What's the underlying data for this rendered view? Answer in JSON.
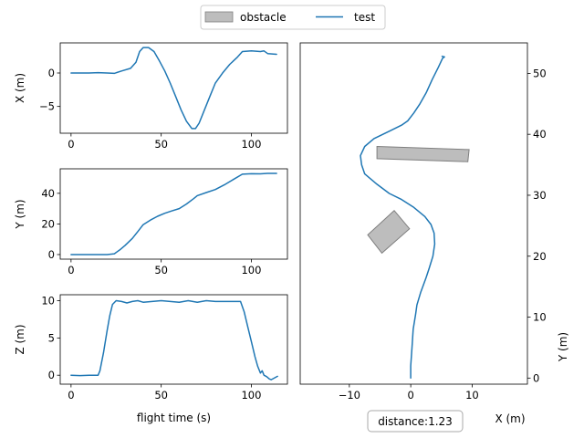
{
  "legend": {
    "items": [
      {
        "label": "obstacle",
        "kind": "patch",
        "color": "#999999"
      },
      {
        "label": "test",
        "kind": "line",
        "color": "#1f77b4"
      }
    ]
  },
  "colors": {
    "line": "#1f77b4",
    "obstacle_fill": "#999999",
    "axes": "#000000"
  },
  "annotation": {
    "text": "distance:1.23"
  },
  "chart_data": [
    {
      "id": "x-vs-time",
      "type": "line",
      "xlabel": "",
      "ylabel": "X (m)",
      "xlim": [
        -6,
        120
      ],
      "ylim": [
        -9,
        4.5
      ],
      "xticks": [
        0,
        50,
        100
      ],
      "xticklabels": [
        "0",
        "50",
        "100"
      ],
      "yticks": [
        -5,
        0
      ],
      "yticklabels": [
        "−5",
        "0"
      ],
      "series": [
        {
          "color": "#1f77b4",
          "points": [
            [
              0,
              0
            ],
            [
              10,
              0
            ],
            [
              15,
              0.05
            ],
            [
              20,
              0
            ],
            [
              24,
              -0.05
            ],
            [
              28,
              0.3
            ],
            [
              33,
              0.7
            ],
            [
              36,
              1.6
            ],
            [
              38,
              3.2
            ],
            [
              40,
              3.8
            ],
            [
              43,
              3.8
            ],
            [
              46,
              3.2
            ],
            [
              49,
              1.8
            ],
            [
              52,
              0.3
            ],
            [
              55,
              -1.5
            ],
            [
              58,
              -3.5
            ],
            [
              61,
              -5.5
            ],
            [
              64,
              -7.2
            ],
            [
              67,
              -8.3
            ],
            [
              69,
              -8.3
            ],
            [
              71,
              -7.5
            ],
            [
              74,
              -5.5
            ],
            [
              77,
              -3.5
            ],
            [
              80,
              -1.5
            ],
            [
              84,
              0
            ],
            [
              88,
              1.3
            ],
            [
              92,
              2.3
            ],
            [
              95,
              3.2
            ],
            [
              100,
              3.3
            ],
            [
              105,
              3.2
            ],
            [
              107,
              3.3
            ],
            [
              109,
              2.9
            ],
            [
              114,
              2.8
            ]
          ]
        }
      ]
    },
    {
      "id": "y-vs-time",
      "type": "line",
      "xlabel": "",
      "ylabel": "Y (m)",
      "xlim": [
        -6,
        120
      ],
      "ylim": [
        -3,
        56
      ],
      "xticks": [
        0,
        50,
        100
      ],
      "xticklabels": [
        "0",
        "50",
        "100"
      ],
      "yticks": [
        0,
        20,
        40
      ],
      "yticklabels": [
        "0",
        "20",
        "40"
      ],
      "series": [
        {
          "color": "#1f77b4",
          "points": [
            [
              0,
              0
            ],
            [
              10,
              0
            ],
            [
              15,
              0
            ],
            [
              20,
              0
            ],
            [
              24,
              0.5
            ],
            [
              27,
              3
            ],
            [
              30,
              6
            ],
            [
              34,
              10.5
            ],
            [
              37,
              15
            ],
            [
              40,
              19.5
            ],
            [
              44,
              22.5
            ],
            [
              48,
              25
            ],
            [
              52,
              27
            ],
            [
              56,
              28.5
            ],
            [
              60,
              30
            ],
            [
              64,
              33
            ],
            [
              68,
              36.5
            ],
            [
              70,
              38.5
            ],
            [
              75,
              40.5
            ],
            [
              80,
              42.5
            ],
            [
              85,
              45.5
            ],
            [
              90,
              49
            ],
            [
              95,
              52.5
            ],
            [
              100,
              52.8
            ],
            [
              105,
              52.7
            ],
            [
              109,
              53
            ],
            [
              114,
              53
            ]
          ]
        }
      ]
    },
    {
      "id": "z-vs-time",
      "type": "line",
      "xlabel": "flight time (s)",
      "ylabel": "Z (m)",
      "xlim": [
        -6,
        120
      ],
      "ylim": [
        -1.2,
        10.8
      ],
      "xticks": [
        0,
        50,
        100
      ],
      "xticklabels": [
        "0",
        "50",
        "100"
      ],
      "yticks": [
        0,
        5,
        10
      ],
      "yticklabels": [
        "0",
        "5",
        "10"
      ],
      "series": [
        {
          "color": "#1f77b4",
          "points": [
            [
              0,
              0
            ],
            [
              5,
              -0.05
            ],
            [
              10,
              0
            ],
            [
              15,
              0
            ],
            [
              16,
              0.6
            ],
            [
              18,
              3
            ],
            [
              20,
              6
            ],
            [
              21.5,
              8
            ],
            [
              23,
              9.5
            ],
            [
              25,
              10
            ],
            [
              28,
              9.9
            ],
            [
              31,
              9.7
            ],
            [
              34,
              9.9
            ],
            [
              37,
              10
            ],
            [
              40,
              9.8
            ],
            [
              45,
              9.9
            ],
            [
              50,
              10
            ],
            [
              55,
              9.9
            ],
            [
              60,
              9.8
            ],
            [
              65,
              10
            ],
            [
              70,
              9.8
            ],
            [
              75,
              10
            ],
            [
              80,
              9.9
            ],
            [
              85,
              9.9
            ],
            [
              94,
              9.9
            ],
            [
              96,
              8.5
            ],
            [
              98,
              6.5
            ],
            [
              100,
              4.5
            ],
            [
              102,
              2.5
            ],
            [
              103.5,
              1.2
            ],
            [
              105,
              0.3
            ],
            [
              106,
              0.6
            ],
            [
              107,
              0
            ],
            [
              108.5,
              -0.2
            ],
            [
              110,
              -0.5
            ],
            [
              111,
              -0.6
            ],
            [
              112.5,
              -0.4
            ],
            [
              114.5,
              -0.15
            ]
          ]
        }
      ]
    },
    {
      "id": "xy-path",
      "type": "line",
      "xlabel": "X (m)",
      "ylabel": "Y (m)",
      "xlim": [
        -18,
        19
      ],
      "ylim": [
        -1,
        55
      ],
      "xticks": [
        -10,
        0,
        10
      ],
      "xticklabels": [
        "−10",
        "0",
        "10"
      ],
      "yticks": [
        0,
        10,
        20,
        30,
        40,
        50
      ],
      "yticklabels": [
        "0",
        "10",
        "20",
        "30",
        "40",
        "50"
      ],
      "obstacles": [
        {
          "label": "obstacle",
          "polygon": [
            [
              -5.5,
              38
            ],
            [
              9.5,
              37.5
            ],
            [
              9.3,
              35.5
            ],
            [
              -5.5,
              36
            ]
          ]
        },
        {
          "label": "obstacle",
          "polygon": [
            [
              -7,
              23.5
            ],
            [
              -2.7,
              27.5
            ],
            [
              -0.2,
              24.5
            ],
            [
              -4.7,
              20.5
            ]
          ]
        }
      ],
      "series": [
        {
          "color": "#1f77b4",
          "points": [
            [
              0,
              0
            ],
            [
              0,
              2
            ],
            [
              0.2,
              5
            ],
            [
              0.4,
              8
            ],
            [
              0.8,
              10.5
            ],
            [
              1,
              12
            ],
            [
              1.6,
              14
            ],
            [
              2.5,
              16.5
            ],
            [
              3,
              18
            ],
            [
              3.6,
              20
            ],
            [
              3.9,
              22
            ],
            [
              3.8,
              23.8
            ],
            [
              3.3,
              25.2
            ],
            [
              2.3,
              26.5
            ],
            [
              0.5,
              28
            ],
            [
              -1.5,
              29.3
            ],
            [
              -3.5,
              30.3
            ],
            [
              -5.5,
              31.8
            ],
            [
              -7.5,
              33.5
            ],
            [
              -8,
              35
            ],
            [
              -8.2,
              36.5
            ],
            [
              -7.5,
              38
            ],
            [
              -6,
              39.3
            ],
            [
              -3.5,
              40.5
            ],
            [
              -1.5,
              41.5
            ],
            [
              -0.5,
              42.2
            ],
            [
              0.5,
              43.5
            ],
            [
              1.5,
              45
            ],
            [
              2.5,
              46.8
            ],
            [
              3.5,
              49
            ],
            [
              4.5,
              51
            ],
            [
              5.2,
              52.5
            ],
            [
              5.5,
              52.7
            ],
            [
              5.1,
              52.8
            ]
          ]
        }
      ]
    }
  ]
}
